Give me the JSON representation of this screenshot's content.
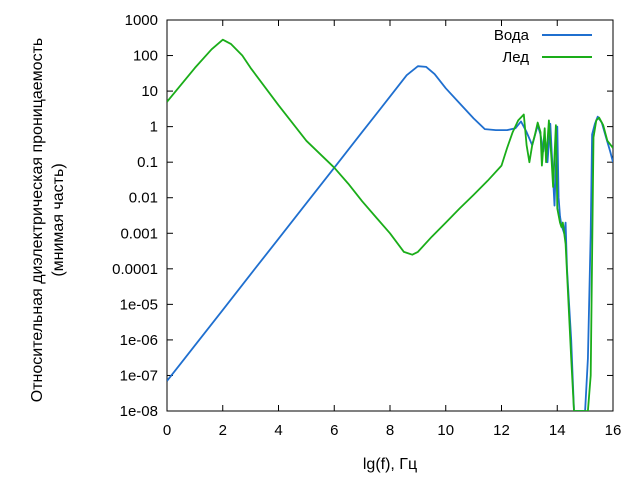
{
  "chart_data": {
    "type": "line",
    "xlabel": "lg(f), Гц",
    "ylabel_lines": [
      "Относительная диэлектрическая проницаемость",
      "(мнимая часть)"
    ],
    "xlim": [
      0,
      16
    ],
    "ylim": [
      1e-08,
      1000
    ],
    "yscale": "log",
    "x_ticks": [
      0,
      2,
      4,
      6,
      8,
      10,
      12,
      14,
      16
    ],
    "x_tick_labels": [
      "0",
      "2",
      "4",
      "6",
      "8",
      "10",
      "12",
      "14",
      "16"
    ],
    "y_ticks": [
      1000,
      100,
      10,
      1,
      0.1,
      0.01,
      0.001,
      0.0001,
      1e-05,
      1e-06,
      1e-07,
      1e-08
    ],
    "y_tick_labels": [
      "1000",
      "100",
      "10",
      "1",
      "0.1",
      "0.01",
      "0.001",
      "0.0001",
      "1e-05",
      "1e-06",
      "1e-07",
      "1e-08"
    ],
    "grid": false,
    "legend_position": "top-right",
    "series": [
      {
        "name": "Вода",
        "color": "#1f6fcf",
        "points": [
          [
            0,
            7e-08
          ],
          [
            0.5,
            2.2e-07
          ],
          [
            1,
            7e-07
          ],
          [
            2,
            7e-06
          ],
          [
            3,
            7e-05
          ],
          [
            4,
            0.0007
          ],
          [
            5,
            0.007
          ],
          [
            6,
            0.07
          ],
          [
            7,
            0.7
          ],
          [
            8,
            7
          ],
          [
            8.6,
            28
          ],
          [
            9,
            50
          ],
          [
            9.3,
            48
          ],
          [
            9.6,
            30
          ],
          [
            10,
            12
          ],
          [
            10.5,
            4.5
          ],
          [
            11,
            1.7
          ],
          [
            11.4,
            0.85
          ],
          [
            11.8,
            0.8
          ],
          [
            12.2,
            0.8
          ],
          [
            12.5,
            0.9
          ],
          [
            12.7,
            1.4
          ],
          [
            12.9,
            0.7
          ],
          [
            13.1,
            0.3
          ],
          [
            13.3,
            1.1
          ],
          [
            13.4,
            0.6
          ],
          [
            13.5,
            0.2
          ],
          [
            13.55,
            0.5
          ],
          [
            13.65,
            0.1
          ],
          [
            13.75,
            1.2
          ],
          [
            13.8,
            0.2
          ],
          [
            13.9,
            0.006
          ],
          [
            14.0,
            1.0
          ],
          [
            14.05,
            0.01
          ],
          [
            14.1,
            0.003
          ],
          [
            14.15,
            0.0017
          ],
          [
            14.25,
            0.001
          ],
          [
            14.3,
            0.002
          ],
          [
            14.35,
            0.0001
          ],
          [
            14.5,
            1e-06
          ],
          [
            14.6,
            1e-08
          ],
          [
            15.0,
            1e-08
          ],
          [
            15.1,
            3e-07
          ],
          [
            15.2,
            0.001
          ],
          [
            15.25,
            0.6
          ],
          [
            15.35,
            1.2
          ],
          [
            15.45,
            1.9
          ],
          [
            15.6,
            1.3
          ],
          [
            15.75,
            0.5
          ],
          [
            15.9,
            0.2
          ],
          [
            16,
            0.1
          ]
        ]
      },
      {
        "name": "Лед",
        "color": "#1aad19",
        "points": [
          [
            0,
            5
          ],
          [
            1,
            45
          ],
          [
            1.6,
            150
          ],
          [
            2,
            280
          ],
          [
            2.3,
            210
          ],
          [
            2.7,
            100
          ],
          [
            3,
            45
          ],
          [
            4,
            4
          ],
          [
            5,
            0.4
          ],
          [
            6,
            0.07
          ],
          [
            6.5,
            0.025
          ],
          [
            7,
            0.008
          ],
          [
            7.5,
            0.0028
          ],
          [
            8,
            0.001
          ],
          [
            8.5,
            0.0003
          ],
          [
            8.8,
            0.00025
          ],
          [
            9,
            0.0003
          ],
          [
            9.5,
            0.0008
          ],
          [
            10,
            0.002
          ],
          [
            10.5,
            0.005
          ],
          [
            11,
            0.012
          ],
          [
            11.5,
            0.03
          ],
          [
            12,
            0.08
          ],
          [
            12.2,
            0.25
          ],
          [
            12.4,
            0.7
          ],
          [
            12.6,
            1.5
          ],
          [
            12.8,
            2.2
          ],
          [
            12.9,
            0.3
          ],
          [
            13.0,
            0.1
          ],
          [
            13.1,
            0.3
          ],
          [
            13.2,
            0.6
          ],
          [
            13.3,
            1.3
          ],
          [
            13.4,
            0.7
          ],
          [
            13.45,
            0.08
          ],
          [
            13.55,
            0.9
          ],
          [
            13.6,
            0.1
          ],
          [
            13.7,
            1.5
          ],
          [
            13.8,
            0.1
          ],
          [
            13.85,
            0.02
          ],
          [
            13.95,
            1.1
          ],
          [
            14.0,
            0.005
          ],
          [
            14.1,
            0.002
          ],
          [
            14.15,
            0.0015
          ],
          [
            14.2,
            0.002
          ],
          [
            14.3,
            0.0005
          ],
          [
            14.5,
            3e-07
          ],
          [
            14.6,
            1e-08
          ],
          [
            15.1,
            1e-08
          ],
          [
            15.2,
            1e-07
          ],
          [
            15.3,
            0.5
          ],
          [
            15.4,
            1.5
          ],
          [
            15.5,
            1.8
          ],
          [
            15.65,
            1.1
          ],
          [
            15.8,
            0.4
          ],
          [
            16,
            0.25
          ]
        ]
      }
    ]
  }
}
